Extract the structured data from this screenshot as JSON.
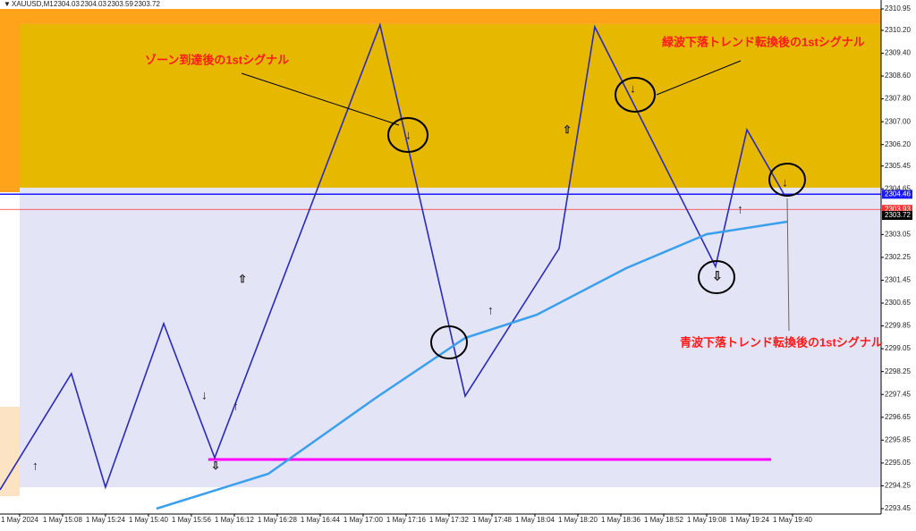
{
  "chart_data": {
    "type": "line",
    "header": {
      "symbol": "XAUUSD,M1",
      "ohlc": [
        2304.03,
        2304.03,
        2303.59,
        2303.72
      ]
    },
    "xlim": [
      -15.3,
      313
    ],
    "ylim": [
      2293.45,
      2310.95
    ],
    "xticks": [
      {
        "value": -8,
        "label": "1 May 2024"
      },
      {
        "value": 8,
        "label": "1 May 15:08"
      },
      {
        "value": 24,
        "label": "1 May 15:24"
      },
      {
        "value": 40,
        "label": "1 May 15:40"
      },
      {
        "value": 56,
        "label": "1 May 15:56"
      },
      {
        "value": 72,
        "label": "1 May 16:12"
      },
      {
        "value": 88,
        "label": "1 May 16:28"
      },
      {
        "value": 104,
        "label": "1 May 16:44"
      },
      {
        "value": 120,
        "label": "1 May 17:00"
      },
      {
        "value": 136,
        "label": "1 May 17:16"
      },
      {
        "value": 152,
        "label": "1 May 17:32"
      },
      {
        "value": 168,
        "label": "1 May 17:48"
      },
      {
        "value": 184,
        "label": "1 May 18:04"
      },
      {
        "value": 200,
        "label": "1 May 18:20"
      },
      {
        "value": 216,
        "label": "1 May 18:36"
      },
      {
        "value": 232,
        "label": "1 May 18:52"
      },
      {
        "value": 248,
        "label": "1 May 19:08"
      },
      {
        "value": 264,
        "label": "1 May 19:24"
      },
      {
        "value": 280,
        "label": "1 May 19:40"
      }
    ],
    "yticks": [
      2310.95,
      {
        "value": 2310.2,
        "label": "2310.20"
      },
      {
        "value": 2309.4,
        "label": "2309.40"
      },
      {
        "value": 2308.6,
        "label": "2308.60"
      },
      {
        "value": 2307.8,
        "label": "2307.80"
      },
      {
        "value": 2307,
        "label": "2307.00"
      },
      {
        "value": 2306.2,
        "label": "2306.20"
      },
      2305.45,
      2304.65,
      2303.05,
      2302.25,
      2301.45,
      2300.65,
      2299.85,
      2299.05,
      2298.25,
      2297.45,
      2296.65,
      2295.85,
      2295.05,
      2294.25,
      2293.45
    ],
    "zones": [
      {
        "from": 2310.95,
        "to": 2310.42,
        "color": "#ffa31a"
      },
      {
        "from": 2310.42,
        "to": 2304.69,
        "color": "#e6b800"
      },
      {
        "from": 2304.69,
        "to": 2294.2,
        "color": "#e4e4f7"
      }
    ],
    "price_lines": [
      {
        "value": 2304.46,
        "color": "#1a1aff"
      },
      {
        "value": 2303.93,
        "color": "#ff3030"
      },
      {
        "value": 2303.72,
        "color": "#000000"
      }
    ],
    "segment": {
      "from_x": 62.3,
      "to_x": 272,
      "value": 2295.17,
      "color": "#ff00ff"
    },
    "series": [
      {
        "color": "#2a2ab8",
        "x": [
          -15.3,
          11.3,
          24,
          45.7,
          64.7,
          126.3,
          158,
          193,
          206.3,
          251.3,
          263,
          277.3
        ],
        "values": [
          2294.11,
          2298.18,
          2294.2,
          2299.93,
          2295.23,
          2310.39,
          2297.39,
          2302.56,
          2310.32,
          2301.93,
          2306.72,
          2304.38
        ]
      },
      {
        "color": "#3aa0ee",
        "x": [
          43,
          84.7,
          124.7,
          158,
          184.7,
          218,
          248,
          278
        ],
        "values": [
          2293.45,
          2294.67,
          2297.33,
          2299.43,
          2300.24,
          2301.87,
          2303.06,
          2303.5
        ]
      }
    ],
    "annotations": [
      "ゾーン到達後の1stシグナル",
      "緑波下落トレンド転換後の1stシグナル",
      "青波下落トレンド転換後の1stシグナル"
    ]
  }
}
